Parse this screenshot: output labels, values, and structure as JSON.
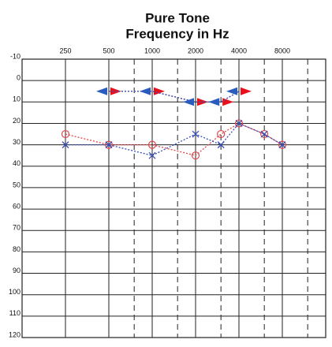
{
  "chart_data": {
    "type": "audiogram",
    "title": "Pure Tone",
    "subtitle": "Frequency in Hz",
    "x_log": true,
    "xlim": [
      125,
      16000
    ],
    "xticks": [
      250,
      500,
      1000,
      2000,
      4000,
      8000
    ],
    "xminor": [
      750,
      1500,
      3000,
      6000,
      12000
    ],
    "ylim": [
      -10,
      120
    ],
    "y_inverted": true,
    "yticks": [
      -10,
      0,
      10,
      20,
      30,
      40,
      50,
      60,
      70,
      80,
      90,
      100,
      110,
      120
    ],
    "grid": true,
    "series": [
      {
        "color": "#e0474c",
        "marker": "circle",
        "line": true,
        "x": [
          250,
          500,
          1000,
          2000,
          3000,
          4000,
          6000,
          8000
        ],
        "values": [
          25,
          30,
          30,
          35,
          25,
          20,
          25,
          30
        ]
      },
      {
        "color": "#3a4fb5",
        "marker": "cross",
        "line": true,
        "x": [
          250,
          500,
          1000,
          2000,
          3000,
          4000,
          6000,
          8000
        ],
        "values": [
          30,
          30,
          35,
          25,
          30,
          20,
          25,
          30
        ]
      },
      {
        "color": "#e8101c",
        "marker": "triangle-right",
        "line": true,
        "x": [
          500,
          1000,
          2000,
          3000,
          4000
        ],
        "values": [
          5,
          5,
          10,
          10,
          5
        ]
      },
      {
        "color": "#2a5cc0",
        "marker": "triangle-left",
        "line": true,
        "x": [
          500,
          1000,
          2000,
          3000,
          4000
        ],
        "values": [
          5,
          5,
          10,
          10,
          5
        ]
      }
    ]
  }
}
